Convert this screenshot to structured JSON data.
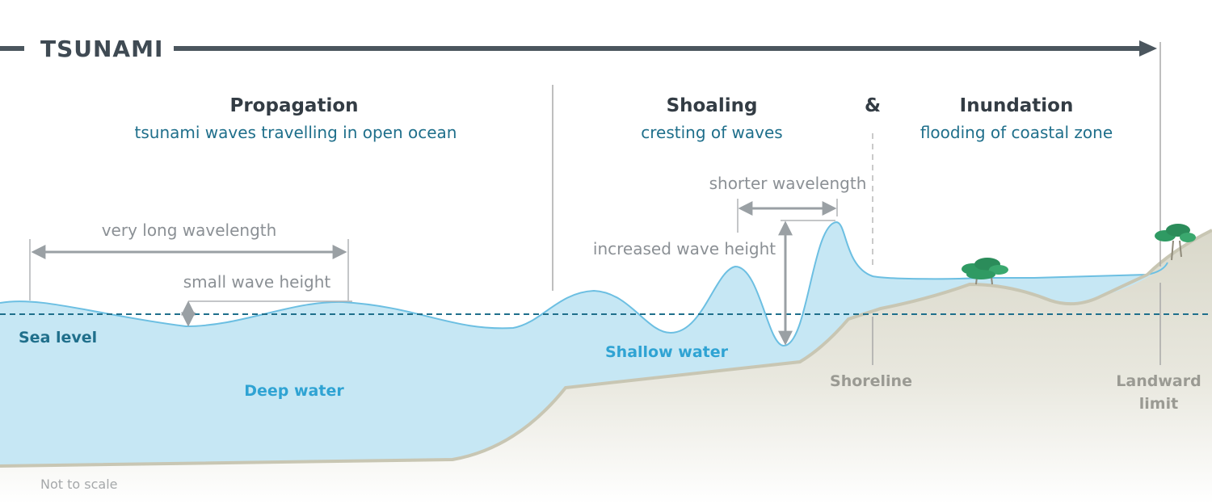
{
  "title": "TSUNAMI",
  "phases": {
    "propagation": {
      "heading": "Propagation",
      "subtitle": "tsunami waves travelling in open ocean"
    },
    "shoaling": {
      "heading": "Shoaling",
      "subtitle": "cresting of waves"
    },
    "connector": "&",
    "inundation": {
      "heading": "Inundation",
      "subtitle": "flooding of coastal zone"
    }
  },
  "annotations": {
    "very_long_wavelength": "very long wavelength",
    "small_wave_height": "small wave height",
    "shorter_wavelength": "shorter wavelength",
    "increased_wave_height": "increased wave height"
  },
  "labels": {
    "sea_level": "Sea level",
    "deep_water": "Deep water",
    "shallow_water": "Shallow water",
    "shoreline": "Shoreline",
    "landward_limit_line1": "Landward",
    "landward_limit_line2": "limit",
    "not_to_scale": "Not to scale"
  },
  "colors": {
    "water": "#c6e7f4",
    "water_edge": "#6cbfe2",
    "land": "#dcdbd0",
    "land_edge": "#c8c6b3",
    "sea_level_line": "#1f6f8b",
    "title_arrow": "#4b565e",
    "tree": "#2f9a63"
  }
}
